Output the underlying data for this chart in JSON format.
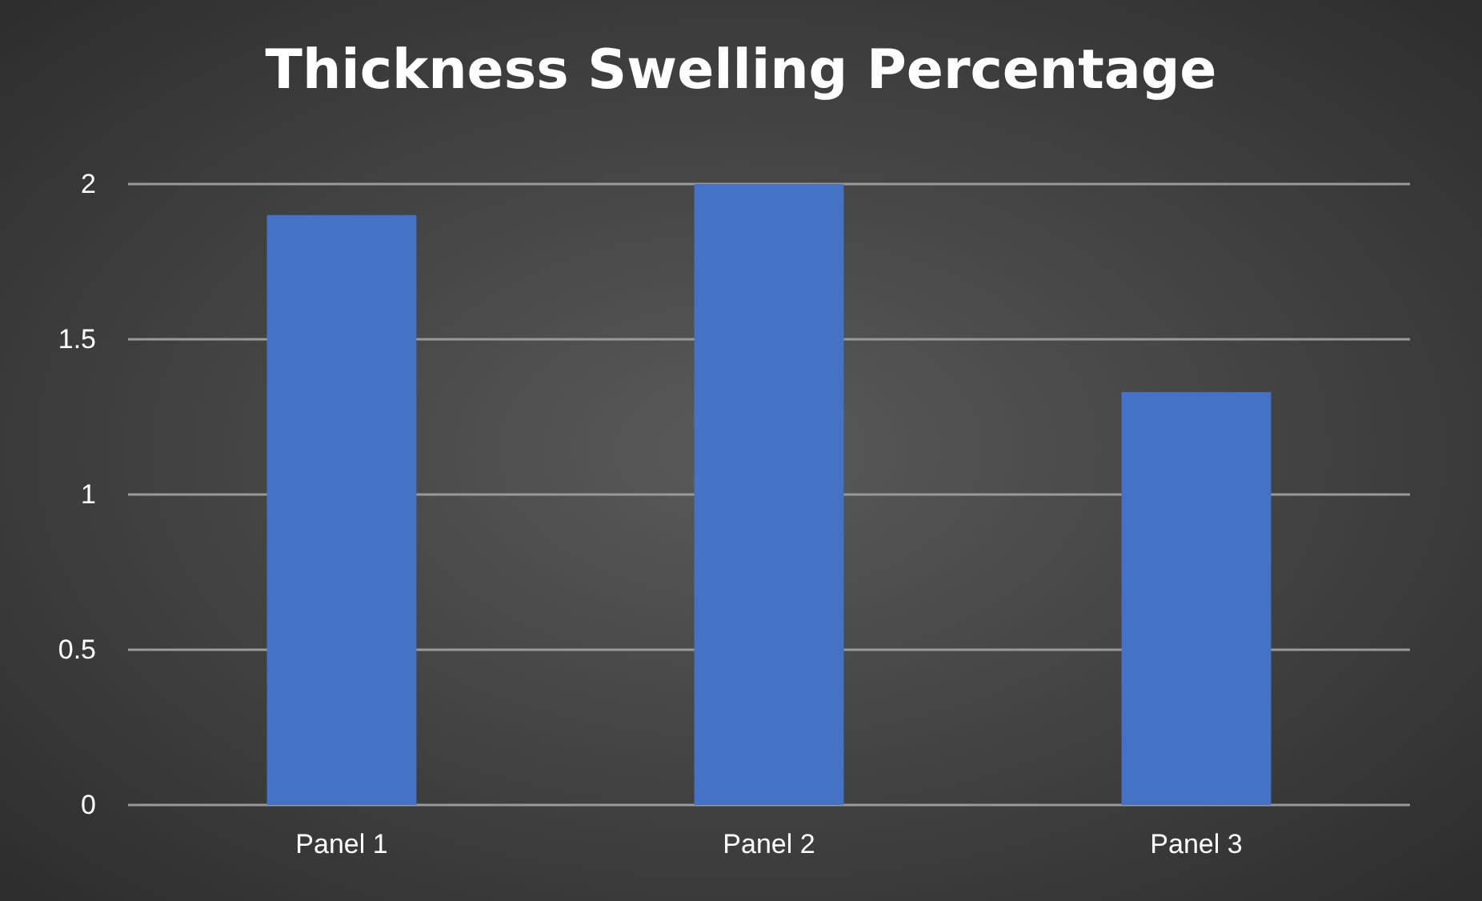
{
  "chart_data": {
    "type": "bar",
    "title": "Thickness Swelling Percentage",
    "categories": [
      "Panel 1",
      "Panel 2",
      "Panel 3"
    ],
    "values": [
      1.9,
      2.0,
      1.33
    ],
    "color": "#4472c4",
    "ylim": [
      0,
      2
    ],
    "yticks": [
      0,
      0.5,
      1,
      1.5,
      2
    ],
    "grid": "y"
  }
}
